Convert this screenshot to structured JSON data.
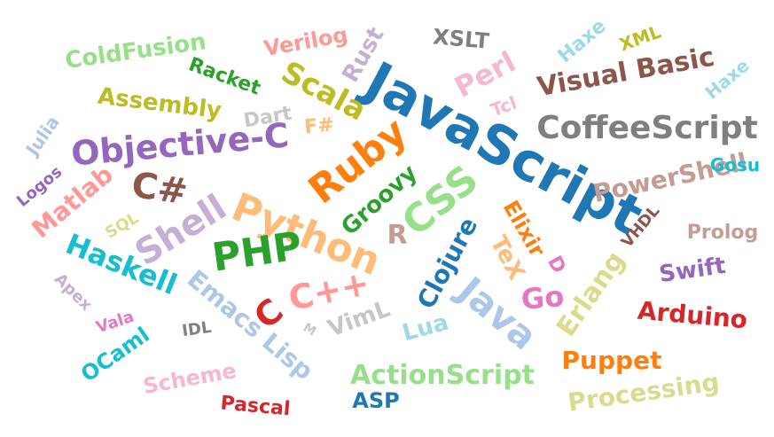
{
  "words": [
    {
      "text": "JavaScript",
      "color": "#1f77b4"
    },
    {
      "text": "CoffeeScript",
      "color": "#7f7f7f"
    },
    {
      "text": "Visual Basic",
      "color": "#8c564b"
    },
    {
      "text": "Objective-C",
      "color": "#9467bd"
    },
    {
      "text": "Python",
      "color": "#ffbb78"
    },
    {
      "text": "Ruby",
      "color": "#ff7f0e"
    },
    {
      "text": "CSS",
      "color": "#98df8a"
    },
    {
      "text": "Java",
      "color": "#aec7e8"
    },
    {
      "text": "Shell",
      "color": "#c5b0d5"
    },
    {
      "text": "PHP",
      "color": "#2ca02c"
    },
    {
      "text": "C++",
      "color": "#ff9896"
    },
    {
      "text": "C#",
      "color": "#8c564b"
    },
    {
      "text": "C",
      "color": "#d62728"
    },
    {
      "text": "PowerShell",
      "color": "#c49c94"
    },
    {
      "text": "Haskell",
      "color": "#17becf"
    },
    {
      "text": "Scala",
      "color": "#bcbd22"
    },
    {
      "text": "Perl",
      "color": "#f7b6d2"
    },
    {
      "text": "Clojure",
      "color": "#1f77b4"
    },
    {
      "text": "Erlang",
      "color": "#dbdb8d"
    },
    {
      "text": "Groovy",
      "color": "#2ca02c"
    },
    {
      "text": "Emacs Lisp",
      "color": "#aec7e8"
    },
    {
      "text": "ActionScript",
      "color": "#98df8a"
    },
    {
      "text": "Assembly",
      "color": "#bcbd22"
    },
    {
      "text": "ColdFusion",
      "color": "#98df8a"
    },
    {
      "text": "Racket",
      "color": "#2ca02c"
    },
    {
      "text": "Verilog",
      "color": "#ff9896"
    },
    {
      "text": "Rust",
      "color": "#c5b0d5"
    },
    {
      "text": "XSLT",
      "color": "#7f7f7f"
    },
    {
      "text": "Haxe",
      "color": "#9edae5"
    },
    {
      "text": "XML",
      "color": "#bcbd22"
    },
    {
      "text": "Haxe",
      "color": "#9edae5"
    },
    {
      "text": "Tcl",
      "color": "#f7b6d2"
    },
    {
      "text": "Dart",
      "color": "#c7c7c7"
    },
    {
      "text": "F#",
      "color": "#ffbb78"
    },
    {
      "text": "Julia",
      "color": "#aec7e8"
    },
    {
      "text": "Logos",
      "color": "#9467bd"
    },
    {
      "text": "Matlab",
      "color": "#ff9896"
    },
    {
      "text": "SQL",
      "color": "#dbdb8d"
    },
    {
      "text": "R",
      "color": "#c49c94"
    },
    {
      "text": "Elixir",
      "color": "#ff7f0e"
    },
    {
      "text": "TeX",
      "color": "#ffbb78"
    },
    {
      "text": "D",
      "color": "#e377c2"
    },
    {
      "text": "Go",
      "color": "#e377c2"
    },
    {
      "text": "Gosu",
      "color": "#17becf"
    },
    {
      "text": "VHDL",
      "color": "#8c564b"
    },
    {
      "text": "Prolog",
      "color": "#c49c94"
    },
    {
      "text": "Swift",
      "color": "#9467bd"
    },
    {
      "text": "Arduino",
      "color": "#d62728"
    },
    {
      "text": "Puppet",
      "color": "#ff7f0e"
    },
    {
      "text": "Processing",
      "color": "#dbdb8d"
    },
    {
      "text": "ASP",
      "color": "#1f77b4"
    },
    {
      "text": "Lua",
      "color": "#9edae5"
    },
    {
      "text": "VimL",
      "color": "#c7c7c7"
    },
    {
      "text": "M",
      "color": "#c7c7c7"
    },
    {
      "text": "Apex",
      "color": "#c5b0d5"
    },
    {
      "text": "Vala",
      "color": "#e377c2"
    },
    {
      "text": "IDL",
      "color": "#7f7f7f"
    },
    {
      "text": "OCaml",
      "color": "#17becf"
    },
    {
      "text": "Scheme",
      "color": "#f7b6d2"
    },
    {
      "text": "Pascal",
      "color": "#d62728"
    }
  ]
}
